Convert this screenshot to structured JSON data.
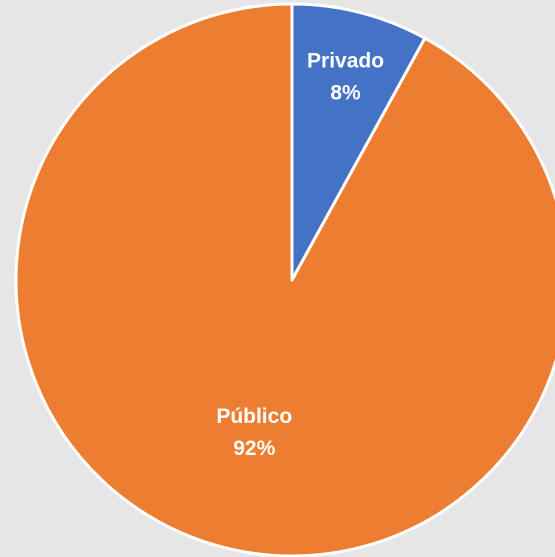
{
  "chart_data": {
    "type": "pie",
    "title": "",
    "slices": [
      {
        "label": "Privado",
        "value": 8,
        "value_text": "8%",
        "color": "#4472c4"
      },
      {
        "label": "Público",
        "value": 92,
        "value_text": "92%",
        "color": "#ed7d31"
      }
    ],
    "start_angle_deg": 0,
    "direction": "clockwise",
    "legend": "none",
    "background": "#e7e6e6",
    "border_color": "#ffffff"
  }
}
